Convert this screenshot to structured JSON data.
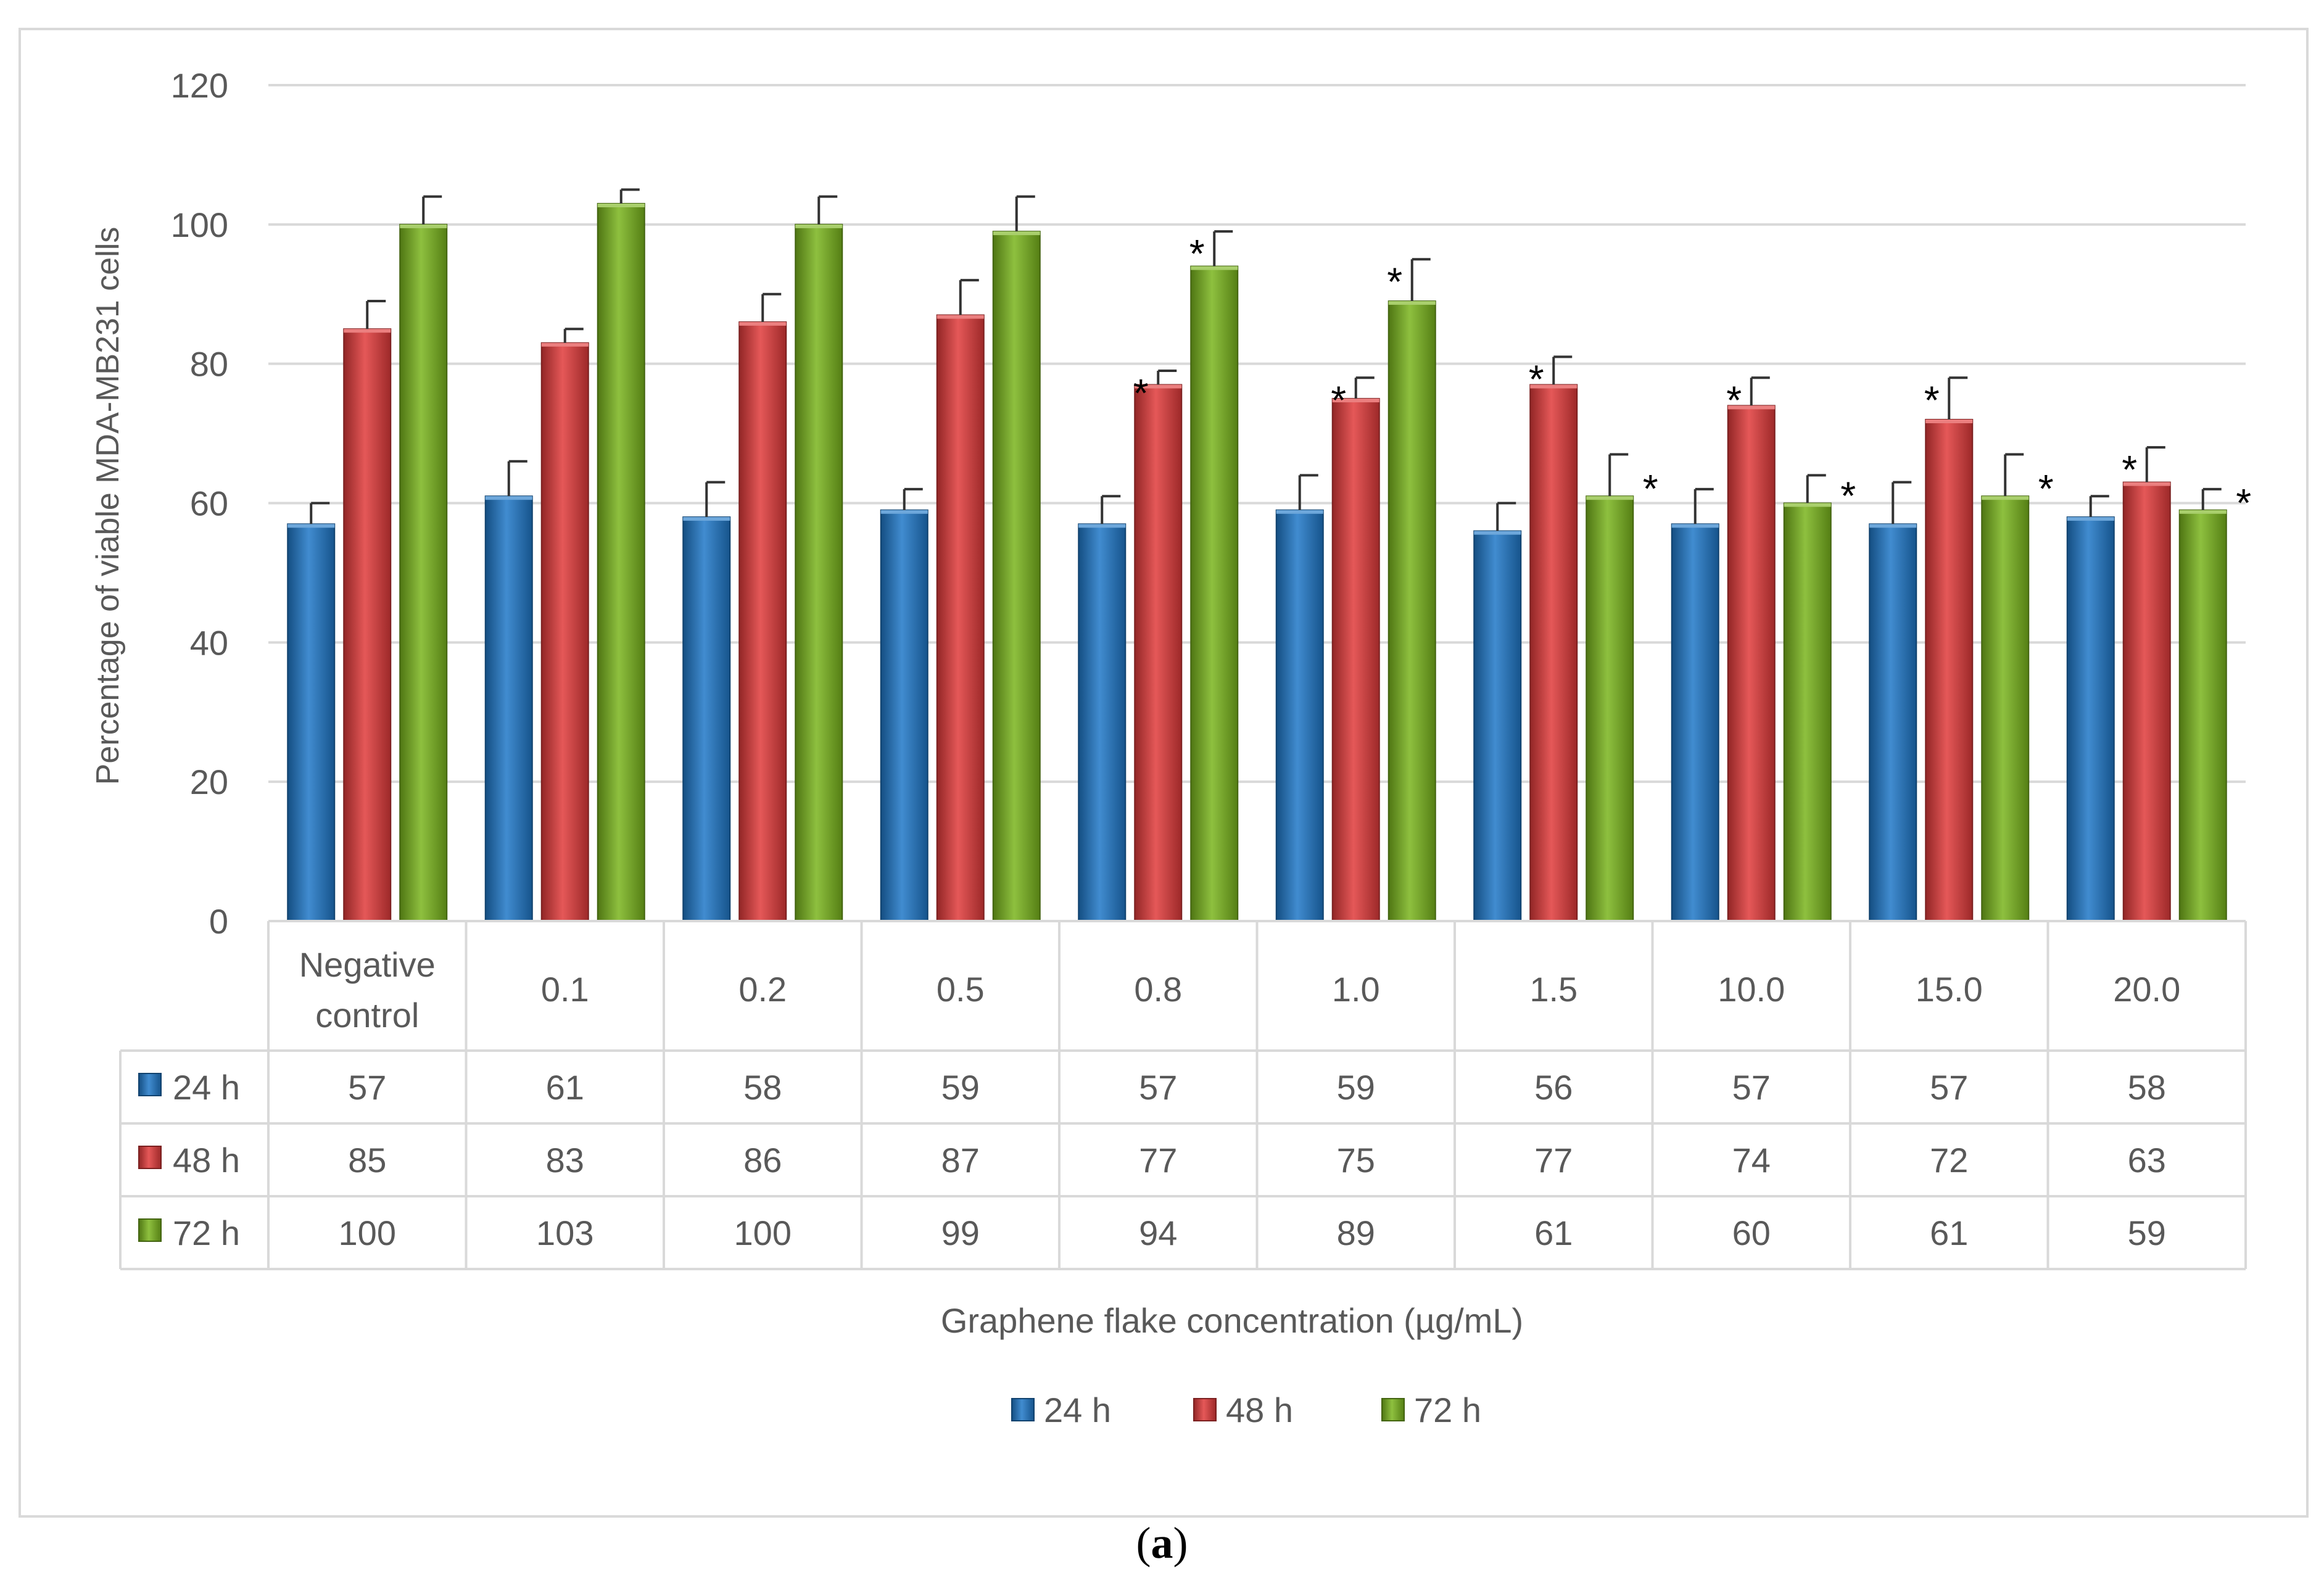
{
  "chart_data": {
    "type": "bar",
    "title": "",
    "xlabel": "Graphene flake concentration (µg/mL)",
    "ylabel": "Percentage of viable MDA-MB231 cells",
    "ylim": [
      0,
      120
    ],
    "yticks": [
      "0",
      "20",
      "40",
      "60",
      "80",
      "100",
      "120"
    ],
    "grid": true,
    "legend_position": "bottom",
    "categories": [
      "Negative control",
      "0.1",
      "0.2",
      "0.5",
      "0.8",
      "1.0",
      "1.5",
      "10.0",
      "15.0",
      "20.0"
    ],
    "series": [
      {
        "name": "24 h",
        "color": "#1f78c8",
        "values": [
          57,
          61,
          58,
          59,
          57,
          59,
          56,
          57,
          57,
          58
        ],
        "errors": [
          3,
          5,
          5,
          3,
          4,
          5,
          4,
          5,
          6,
          3
        ],
        "significant": [
          false,
          false,
          false,
          false,
          false,
          false,
          false,
          false,
          false,
          false
        ]
      },
      {
        "name": "48 h",
        "color": "#e03a3a",
        "values": [
          85,
          83,
          86,
          87,
          77,
          75,
          77,
          74,
          72,
          63
        ],
        "errors": [
          4,
          2,
          4,
          5,
          2,
          3,
          4,
          4,
          6,
          5
        ],
        "significant": [
          false,
          false,
          false,
          false,
          true,
          true,
          true,
          true,
          true,
          true
        ]
      },
      {
        "name": "72 h",
        "color": "#7ab51d",
        "values": [
          100,
          103,
          100,
          99,
          94,
          89,
          61,
          60,
          61,
          59
        ],
        "errors": [
          4,
          2,
          4,
          5,
          5,
          6,
          6,
          4,
          6,
          3
        ],
        "significant": [
          false,
          false,
          false,
          false,
          true,
          true,
          true,
          true,
          true,
          true
        ]
      }
    ],
    "significance_marker": "*",
    "data_table": true
  },
  "panel_label": "a",
  "colors": {
    "grid": "#d9d9d9",
    "text": "#595959",
    "frame": "#d9d9d9"
  }
}
